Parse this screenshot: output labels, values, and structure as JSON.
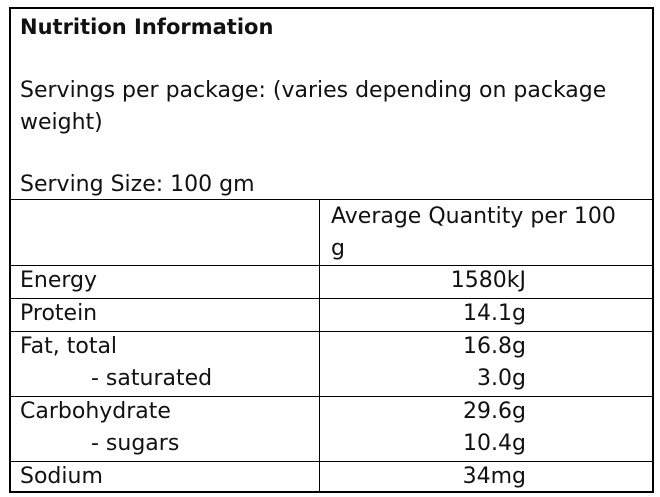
{
  "header": {
    "title": "Nutrition Information",
    "servings": "Servings per package: (varies depending on package weight)",
    "serving_size": "Serving Size: 100 gm"
  },
  "table": {
    "column_header": "Average Quantity per 100 g",
    "rows": [
      {
        "labels": [
          "Energy"
        ],
        "values": [
          "1580kJ"
        ]
      },
      {
        "labels": [
          "Protein"
        ],
        "values": [
          "14.1g"
        ]
      },
      {
        "labels": [
          "Fat, total",
          "- saturated"
        ],
        "values": [
          "16.8g",
          "3.0g"
        ]
      },
      {
        "labels": [
          "Carbohydrate",
          "- sugars"
        ],
        "values": [
          "29.6g",
          "10.4g"
        ]
      },
      {
        "labels": [
          "Sodium"
        ],
        "values": [
          "34mg"
        ]
      }
    ]
  }
}
